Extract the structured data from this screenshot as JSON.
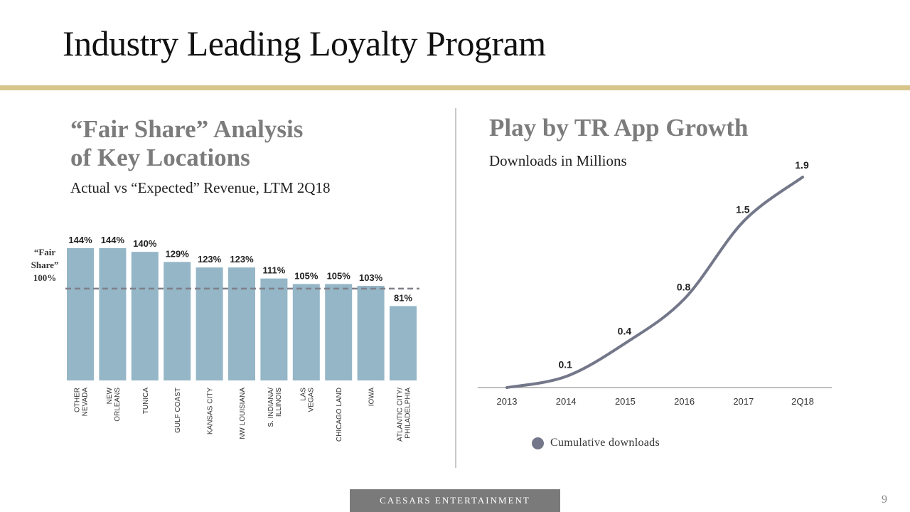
{
  "title": "Industry Leading Loyalty Program",
  "left": {
    "heading_line1": "“Fair Share” Analysis",
    "heading_line2": "of  Key Locations",
    "subtitle": "Actual vs “Expected” Revenue, LTM 2Q18",
    "fair_share_label_line1": "“Fair",
    "fair_share_label_line2": "Share”",
    "fair_share_label_line3": "100%"
  },
  "right": {
    "heading": "Play by TR App Growth",
    "subtitle": "Downloads in Millions",
    "legend_label": "Cumulative downloads"
  },
  "footer": {
    "brand": "CAESARS ENTERTAINMENT",
    "page_number": "9"
  },
  "colors": {
    "bar": "#94b6c7",
    "line": "#737789",
    "reference_line": "#7f7f89",
    "accent_rule": "#d8c58c",
    "heading": "#7c7c7c"
  },
  "chart_data": [
    {
      "type": "bar",
      "title": "“Fair Share” Analysis of Key Locations",
      "subtitle": "Actual vs “Expected” Revenue, LTM 2Q18",
      "categories": [
        [
          "OTHER",
          "NEVADA"
        ],
        [
          "NEW",
          "ORLEANS"
        ],
        [
          "TUNICA"
        ],
        [
          "GULF  COAST"
        ],
        [
          "KANSAS CITY"
        ],
        [
          "NW LOUISIANA"
        ],
        [
          "S. INDIANA/",
          "ILLINOIS"
        ],
        [
          "LAS",
          "VEGAS"
        ],
        [
          "CHICAGO LAND"
        ],
        [
          "IOWA"
        ],
        [
          "ATLANTIC CITY/",
          "PHILADELPHIA"
        ]
      ],
      "values": [
        144,
        144,
        140,
        129,
        123,
        123,
        111,
        105,
        105,
        103,
        81
      ],
      "value_labels": [
        "144%",
        "144%",
        "140%",
        "129%",
        "123%",
        "123%",
        "111%",
        "105%",
        "105%",
        "103%",
        "81%"
      ],
      "reference_line": {
        "value": 100,
        "label": "“Fair Share” 100%"
      },
      "ylim": [
        0,
        144
      ]
    },
    {
      "type": "line",
      "title": "Play by TR App Growth",
      "subtitle": "Downloads in Millions",
      "x": [
        "2013",
        "2014",
        "2015",
        "2016",
        "2017",
        "2Q18"
      ],
      "series": [
        {
          "name": "Cumulative downloads",
          "values": [
            0.0,
            0.1,
            0.4,
            0.8,
            1.5,
            1.9
          ]
        }
      ],
      "value_labels": [
        "",
        "0.1",
        "0.4",
        "0.8",
        "1.5",
        "1.9"
      ],
      "ylim": [
        0,
        1.9
      ]
    }
  ]
}
